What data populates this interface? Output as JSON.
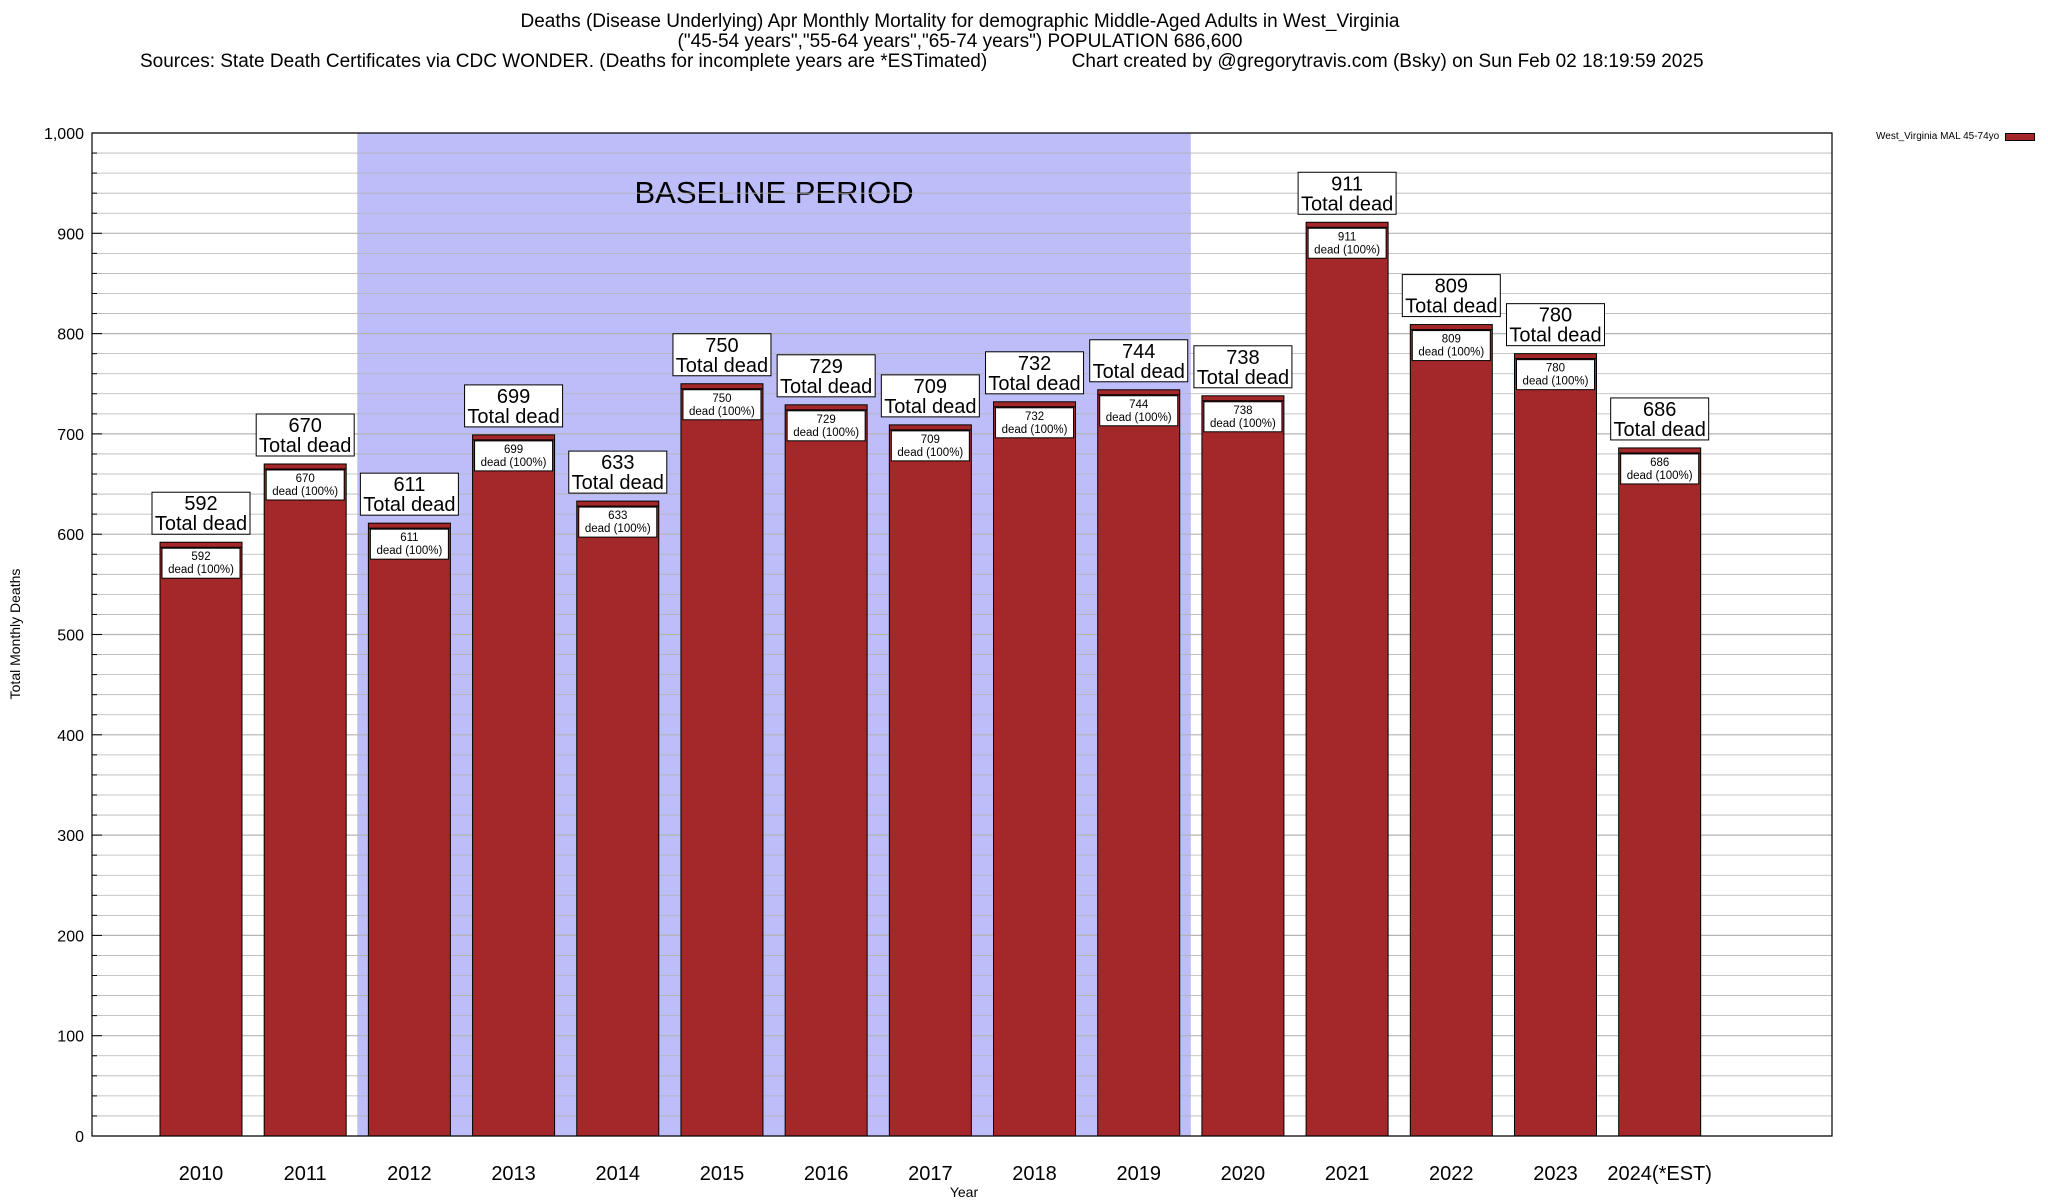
{
  "title": {
    "line1": "Deaths (Disease Underlying) Apr Monthly Mortality for demographic Middle-Aged Adults in West_Virginia",
    "line2": "(\"45-54 years\",\"55-64 years\",\"65-74 years\") POPULATION 686,600",
    "line3_left": "Sources: State Death Certificates via CDC WONDER. (Deaths for incomplete years are *ESTimated)",
    "line3_right": "Chart created by @gregorytravis.com (Bsky) on Sun Feb 02 18:19:59 2025"
  },
  "legend": {
    "label": "West_Virginia MAL 45-74yo"
  },
  "colors": {
    "bar": "#a4282a",
    "baseline_band": "#bdbdfa",
    "grid": "#b4b4b4"
  },
  "chart_data": {
    "type": "bar",
    "xlabel": "Year",
    "ylabel": "Total Monthly Deaths",
    "ylim": [
      0,
      1000
    ],
    "y_ticks": [
      "0",
      "100",
      "200",
      "300",
      "400",
      "500",
      "600",
      "700",
      "800",
      "900",
      "1,000"
    ],
    "grid": true,
    "legend_position": "top-right",
    "baseline_annotation": {
      "label": "BASELINE PERIOD",
      "from": "2012",
      "to": "2019"
    },
    "categories": [
      "2010",
      "2011",
      "2012",
      "2013",
      "2014",
      "2015",
      "2016",
      "2017",
      "2018",
      "2019",
      "2020",
      "2021",
      "2022",
      "2023",
      "2024(*EST)"
    ],
    "series": [
      {
        "name": "West_Virginia MAL 45-74yo",
        "values": [
          592,
          670,
          611,
          699,
          633,
          750,
          729,
          709,
          732,
          744,
          738,
          911,
          809,
          780,
          686
        ]
      }
    ],
    "total_label": "Total dead",
    "inner_label": "dead (100%)"
  }
}
